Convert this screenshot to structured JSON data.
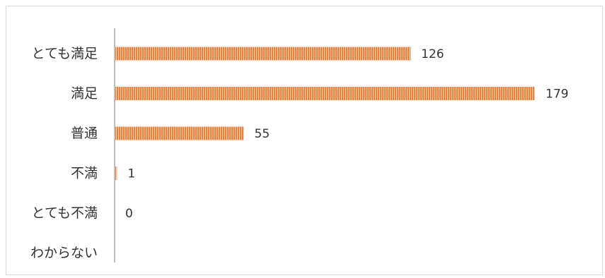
{
  "chart_data": {
    "type": "bar",
    "orientation": "horizontal",
    "categories": [
      "とても満足",
      "満足",
      "普通",
      "不満",
      "とても不満",
      "わからない"
    ],
    "values": [
      126,
      179,
      55,
      1,
      0,
      null
    ],
    "data_labels": [
      "126",
      "179",
      "55",
      "1",
      "0",
      ""
    ],
    "xlim": [
      0,
      179
    ],
    "grid": false,
    "legend": "none",
    "colors": {
      "bar": "#f07f3a",
      "bar_stripe": "#fbd2b4",
      "axis": "#bfbfbf",
      "text": "#333333"
    }
  }
}
